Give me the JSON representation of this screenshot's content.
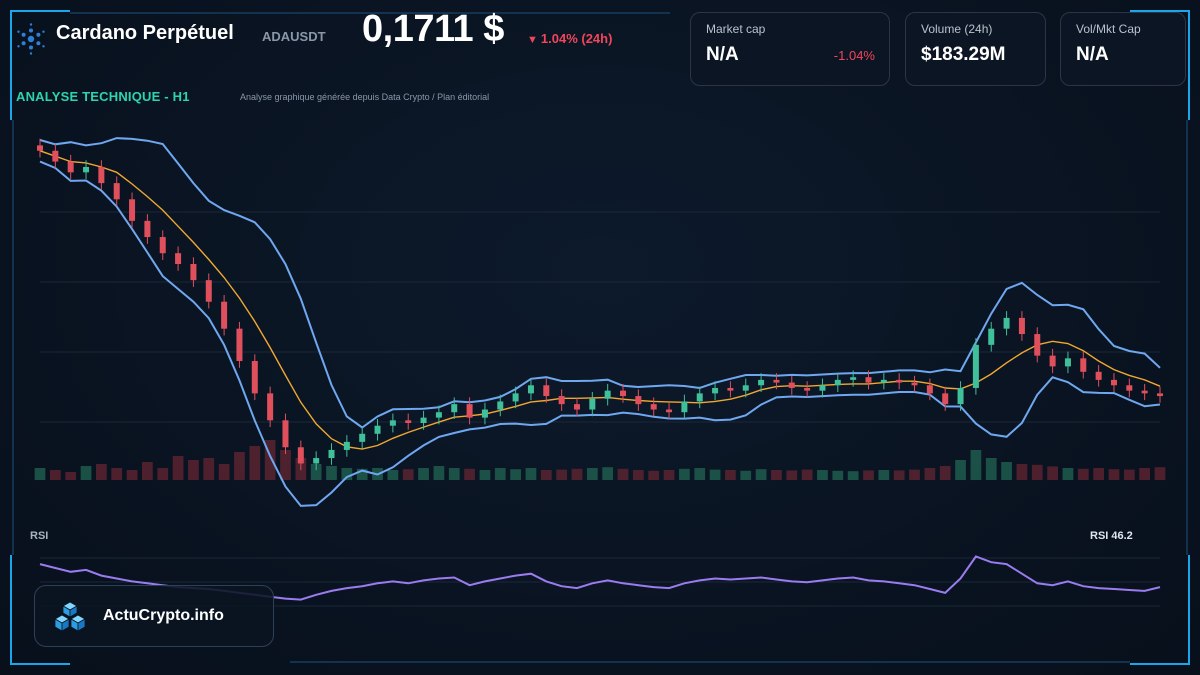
{
  "header": {
    "title": "Cardano Perpétuel",
    "ticker": "ADAUSDT",
    "price": "0,1711 $",
    "change_arrow": "▼",
    "change": "1.04% (24h)",
    "logo_icon": "cardano-logo-icon"
  },
  "cards": [
    {
      "label": "Market cap",
      "value": "N/A",
      "delta": "-1.04%"
    },
    {
      "label": "Volume (24h)",
      "value": "$183.29M",
      "delta": ""
    },
    {
      "label": "Vol/Mkt Cap",
      "value": "N/A",
      "delta": ""
    }
  ],
  "section": {
    "label": "ANALYSE TECHNIQUE - H1",
    "subtitle": "Analyse graphique générée depuis Data Crypto / Plan éditorial"
  },
  "rsi": {
    "label": "RSI",
    "value_label": "RSI 46.2"
  },
  "brand": {
    "name": "ActuCrypto.info",
    "icon": "cubes-logo-icon"
  },
  "colors": {
    "accent": "#2ed3b0",
    "up": "#3fbf9a",
    "down": "#e0505c",
    "bollinger": "#6fa8f0",
    "ma": "#f0a830",
    "rsi_line": "#9b7cf0",
    "frame": "#1aa6e8"
  },
  "chart_data": {
    "type": "line",
    "title": "",
    "series": [
      {
        "name": "",
        "values": [
          0.262,
          0.258,
          0.254,
          0.256,
          0.25,
          0.244,
          0.236,
          0.23,
          0.224,
          0.22,
          0.214,
          0.206,
          0.196,
          0.184,
          0.172,
          0.162,
          0.152,
          0.146,
          0.148,
          0.151,
          0.154,
          0.157,
          0.16,
          0.162,
          0.161,
          0.163,
          0.165,
          0.168,
          0.163,
          0.166,
          0.169,
          0.172,
          0.175,
          0.171,
          0.168,
          0.166,
          0.17,
          0.173,
          0.171,
          0.168,
          0.166,
          0.165,
          0.169,
          0.172,
          0.174,
          0.173,
          0.175,
          0.177,
          0.176,
          0.174,
          0.173,
          0.175,
          0.177,
          0.178,
          0.176,
          0.177,
          0.176,
          0.175,
          0.172,
          0.168,
          0.174,
          0.19,
          0.196,
          0.2,
          0.194,
          0.186,
          0.182,
          0.185,
          0.18,
          0.177,
          0.175,
          0.173,
          0.172,
          0.171
        ]
      }
    ],
    "volume": [
      0.3,
      0.25,
      0.2,
      0.35,
      0.4,
      0.3,
      0.25,
      0.45,
      0.3,
      0.6,
      0.5,
      0.55,
      0.4,
      0.7,
      0.85,
      1.0,
      0.75,
      0.55,
      0.4,
      0.35,
      0.3,
      0.28,
      0.3,
      0.25,
      0.27,
      0.3,
      0.35,
      0.3,
      0.28,
      0.25,
      0.3,
      0.27,
      0.3,
      0.25,
      0.26,
      0.28,
      0.3,
      0.32,
      0.28,
      0.25,
      0.23,
      0.25,
      0.28,
      0.3,
      0.26,
      0.25,
      0.23,
      0.27,
      0.25,
      0.24,
      0.26,
      0.25,
      0.23,
      0.22,
      0.24,
      0.25,
      0.24,
      0.26,
      0.3,
      0.35,
      0.5,
      0.75,
      0.55,
      0.45,
      0.4,
      0.38,
      0.34,
      0.3,
      0.28,
      0.3,
      0.27,
      0.26,
      0.3,
      0.32
    ],
    "rsi": [
      70,
      66,
      62,
      64,
      58,
      55,
      52,
      50,
      48,
      46,
      45,
      44,
      42,
      40,
      38,
      36,
      34,
      33,
      38,
      42,
      45,
      47,
      50,
      52,
      50,
      53,
      55,
      56,
      48,
      52,
      55,
      58,
      60,
      52,
      47,
      45,
      50,
      53,
      50,
      48,
      46,
      45,
      50,
      53,
      55,
      54,
      55,
      56,
      54,
      52,
      51,
      53,
      55,
      56,
      53,
      52,
      50,
      48,
      44,
      40,
      55,
      78,
      72,
      70,
      60,
      50,
      48,
      52,
      47,
      45,
      44,
      43,
      42,
      46
    ],
    "rsi_range": [
      20,
      90
    ],
    "indicators": [
      "Bollinger Bands",
      "Moving Average"
    ],
    "grid": true
  }
}
